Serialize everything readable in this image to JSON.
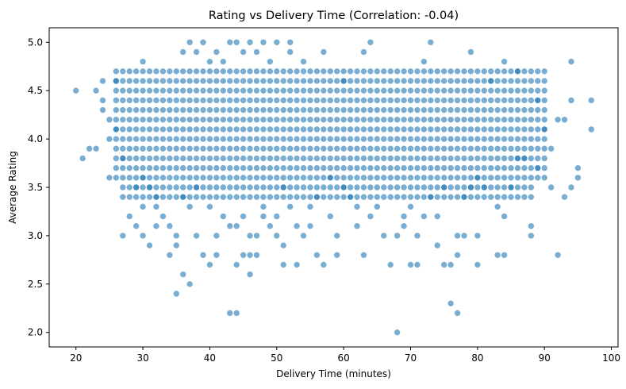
{
  "chart_data": {
    "type": "scatter",
    "title": "Rating vs Delivery Time (Correlation: -0.04)",
    "xlabel": "Delivery Time (minutes)",
    "ylabel": "Average Rating",
    "xlim": [
      16,
      101
    ],
    "ylim": [
      1.85,
      5.15
    ],
    "xticks": [
      20,
      30,
      40,
      50,
      60,
      70,
      80,
      90,
      100
    ],
    "yticks": [
      2.0,
      2.5,
      3.0,
      3.5,
      4.0,
      4.5,
      5.0
    ],
    "xtick_labels": [
      "20",
      "30",
      "40",
      "50",
      "60",
      "70",
      "80",
      "90",
      "100"
    ],
    "ytick_labels": [
      "2.0",
      "2.5",
      "3.0",
      "3.5",
      "4.0",
      "4.5",
      "5.0"
    ],
    "grid": false,
    "legend": "none",
    "marker_color": "#1f77b4",
    "marker_alpha": 0.6,
    "series": [
      {
        "points": [
          [
            20,
            4.5
          ],
          [
            21,
            3.8
          ],
          [
            22,
            3.9
          ],
          [
            23,
            3.9
          ],
          [
            23,
            4.5
          ],
          [
            24,
            4.3
          ],
          [
            24,
            4.4
          ],
          [
            24,
            4.6
          ],
          [
            25,
            4.2
          ],
          [
            25,
            4.0
          ],
          [
            25,
            3.6
          ],
          [
            26,
            4.6
          ],
          [
            26,
            4.1
          ],
          [
            27,
            3.0
          ],
          [
            27,
            3.8
          ],
          [
            28,
            3.2
          ],
          [
            29,
            3.1
          ],
          [
            29,
            3.5
          ],
          [
            30,
            4.8
          ],
          [
            30,
            3.6
          ],
          [
            30,
            3.3
          ],
          [
            30,
            3.0
          ],
          [
            31,
            3.5
          ],
          [
            31,
            2.9
          ],
          [
            32,
            3.3
          ],
          [
            32,
            3.1
          ],
          [
            32,
            3.4
          ],
          [
            33,
            3.2
          ],
          [
            34,
            2.8
          ],
          [
            34,
            3.1
          ],
          [
            35,
            2.4
          ],
          [
            35,
            3.0
          ],
          [
            35,
            2.9
          ],
          [
            36,
            2.6
          ],
          [
            36,
            4.9
          ],
          [
            36,
            3.4
          ],
          [
            37,
            2.5
          ],
          [
            37,
            3.3
          ],
          [
            37,
            5.0
          ],
          [
            38,
            3.5
          ],
          [
            38,
            3.0
          ],
          [
            38,
            4.9
          ],
          [
            39,
            2.8
          ],
          [
            39,
            5.0
          ],
          [
            40,
            2.7
          ],
          [
            40,
            3.3
          ],
          [
            40,
            4.8
          ],
          [
            41,
            3.0
          ],
          [
            41,
            4.9
          ],
          [
            41,
            2.8
          ],
          [
            42,
            3.2
          ],
          [
            42,
            4.8
          ],
          [
            43,
            2.2
          ],
          [
            43,
            3.1
          ],
          [
            43,
            5.0
          ],
          [
            44,
            2.2
          ],
          [
            44,
            2.7
          ],
          [
            44,
            3.1
          ],
          [
            44,
            5.0
          ],
          [
            45,
            2.8
          ],
          [
            45,
            3.2
          ],
          [
            45,
            4.9
          ],
          [
            46,
            2.6
          ],
          [
            46,
            2.8
          ],
          [
            46,
            3.0
          ],
          [
            46,
            5.0
          ],
          [
            47,
            2.8
          ],
          [
            47,
            3.0
          ],
          [
            47,
            4.9
          ],
          [
            48,
            3.2
          ],
          [
            48,
            3.3
          ],
          [
            48,
            5.0
          ],
          [
            49,
            3.1
          ],
          [
            49,
            4.8
          ],
          [
            50,
            3.0
          ],
          [
            50,
            3.2
          ],
          [
            50,
            5.0
          ],
          [
            51,
            2.9
          ],
          [
            51,
            2.7
          ],
          [
            51,
            3.5
          ],
          [
            52,
            3.3
          ],
          [
            52,
            5.0
          ],
          [
            52,
            4.9
          ],
          [
            53,
            2.7
          ],
          [
            53,
            3.1
          ],
          [
            54,
            3.0
          ],
          [
            54,
            4.8
          ],
          [
            55,
            3.1
          ],
          [
            55,
            3.3
          ],
          [
            56,
            2.8
          ],
          [
            56,
            3.4
          ],
          [
            57,
            2.7
          ],
          [
            57,
            4.9
          ],
          [
            58,
            3.2
          ],
          [
            58,
            3.6
          ],
          [
            59,
            2.8
          ],
          [
            59,
            3.0
          ],
          [
            60,
            3.5
          ],
          [
            60,
            4.6
          ],
          [
            61,
            3.4
          ],
          [
            62,
            3.1
          ],
          [
            62,
            3.3
          ],
          [
            63,
            2.8
          ],
          [
            63,
            4.9
          ],
          [
            64,
            3.2
          ],
          [
            64,
            5.0
          ],
          [
            65,
            3.3
          ],
          [
            66,
            3.0
          ],
          [
            67,
            2.7
          ],
          [
            68,
            2.0
          ],
          [
            68,
            3.0
          ],
          [
            69,
            3.1
          ],
          [
            69,
            3.2
          ],
          [
            70,
            2.7
          ],
          [
            70,
            3.3
          ],
          [
            71,
            2.7
          ],
          [
            71,
            3.0
          ],
          [
            72,
            3.2
          ],
          [
            72,
            4.8
          ],
          [
            73,
            5.0
          ],
          [
            73,
            3.4
          ],
          [
            74,
            2.9
          ],
          [
            74,
            3.2
          ],
          [
            75,
            2.7
          ],
          [
            75,
            3.5
          ],
          [
            76,
            2.3
          ],
          [
            76,
            2.7
          ],
          [
            77,
            2.2
          ],
          [
            77,
            2.8
          ],
          [
            77,
            3.0
          ],
          [
            78,
            3.0
          ],
          [
            78,
            3.4
          ],
          [
            79,
            4.9
          ],
          [
            79,
            3.5
          ],
          [
            80,
            2.7
          ],
          [
            80,
            3.0
          ],
          [
            80,
            3.6
          ],
          [
            81,
            3.5
          ],
          [
            82,
            4.6
          ],
          [
            83,
            2.8
          ],
          [
            83,
            3.3
          ],
          [
            84,
            2.8
          ],
          [
            84,
            3.2
          ],
          [
            84,
            4.8
          ],
          [
            85,
            3.5
          ],
          [
            86,
            3.8
          ],
          [
            86,
            4.7
          ],
          [
            87,
            3.8
          ],
          [
            88,
            3.0
          ],
          [
            88,
            3.1
          ],
          [
            89,
            3.7
          ],
          [
            89,
            4.4
          ],
          [
            90,
            4.1
          ],
          [
            91,
            3.5
          ],
          [
            91,
            3.9
          ],
          [
            92,
            2.8
          ],
          [
            92,
            4.2
          ],
          [
            93,
            3.4
          ],
          [
            93,
            4.2
          ],
          [
            94,
            3.5
          ],
          [
            94,
            4.4
          ],
          [
            94,
            4.8
          ],
          [
            95,
            3.7
          ],
          [
            95,
            3.6
          ],
          [
            97,
            4.1
          ],
          [
            97,
            4.4
          ]
        ],
        "dense_band": {
          "x_range": [
            26,
            90
          ],
          "y_values": [
            3.6,
            3.7,
            3.8,
            3.9,
            4.0,
            4.1,
            4.2,
            4.3,
            4.4,
            4.5,
            4.6,
            4.7
          ]
        },
        "mid_band": {
          "x_range": [
            27,
            88
          ],
          "y_values": [
            3.4,
            3.5
          ]
        }
      }
    ]
  }
}
